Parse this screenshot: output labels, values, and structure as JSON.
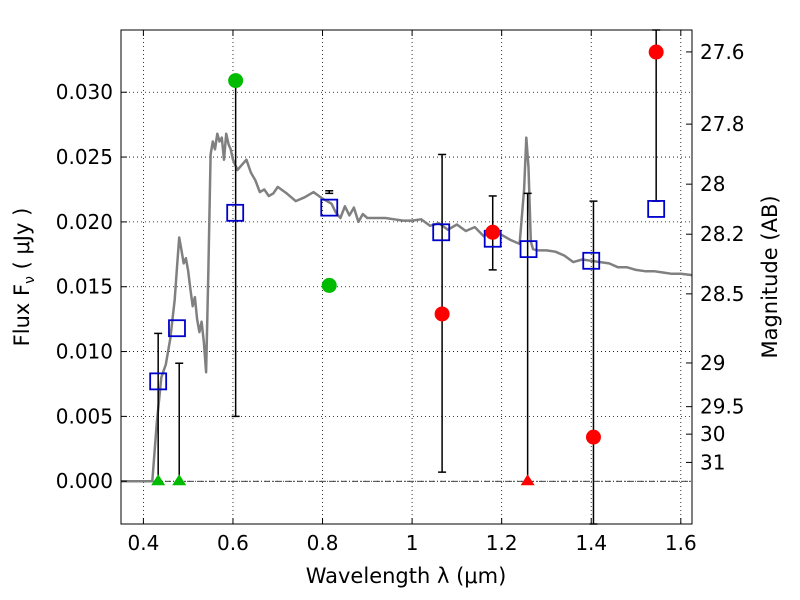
{
  "chart_data": {
    "type": "scatter",
    "title": "",
    "xlabel": "Wavelength  λ (μm)",
    "ylabel_left": "Flux  F",
    "ylabel_left_sub": "ν",
    "ylabel_left_unit": "  ( μJy )",
    "ylabel_right": "Magnitude (AB)",
    "xlim": [
      0.35,
      1.625
    ],
    "ylim": [
      -0.0033,
      0.0348
    ],
    "grid": true,
    "colors": {
      "spectrum": "#808080",
      "model": "#0000cc",
      "green": "#00bb00",
      "red": "#ff0000",
      "errorbar": "#000000",
      "zeroline": "#000000"
    },
    "x_ticks": [
      {
        "value": 0.4,
        "label": "0.4"
      },
      {
        "value": 0.6,
        "label": "0.6"
      },
      {
        "value": 0.8,
        "label": "0.8"
      },
      {
        "value": 1.0,
        "label": "1"
      },
      {
        "value": 1.2,
        "label": "1.2"
      },
      {
        "value": 1.4,
        "label": "1.4"
      },
      {
        "value": 1.6,
        "label": "1.6"
      }
    ],
    "y_ticks": [
      {
        "value": 0.0,
        "label": "0.000"
      },
      {
        "value": 0.005,
        "label": "0.005"
      },
      {
        "value": 0.01,
        "label": "0.010"
      },
      {
        "value": 0.015,
        "label": "0.015"
      },
      {
        "value": 0.02,
        "label": "0.020"
      },
      {
        "value": 0.025,
        "label": "0.025"
      },
      {
        "value": 0.03,
        "label": "0.030"
      }
    ],
    "right_ticks": [
      {
        "flux": 0.03311,
        "label": "27.6"
      },
      {
        "flux": 0.02754,
        "label": "27.8"
      },
      {
        "flux": 0.02291,
        "label": "28"
      },
      {
        "flux": 0.01905,
        "label": "28.2"
      },
      {
        "flux": 0.01445,
        "label": "28.5"
      },
      {
        "flux": 0.00912,
        "label": "29"
      },
      {
        "flux": 0.00575,
        "label": "29.5"
      },
      {
        "flux": 0.00363,
        "label": "30"
      },
      {
        "flux": 0.00145,
        "label": "31"
      }
    ],
    "spectrum": {
      "name": "model spectrum",
      "x": [
        0.35,
        0.42,
        0.43,
        0.44,
        0.45,
        0.46,
        0.47,
        0.475,
        0.48,
        0.485,
        0.49,
        0.495,
        0.5,
        0.505,
        0.51,
        0.515,
        0.52,
        0.525,
        0.53,
        0.535,
        0.54,
        0.545,
        0.55,
        0.555,
        0.56,
        0.565,
        0.57,
        0.575,
        0.58,
        0.585,
        0.59,
        0.595,
        0.6,
        0.61,
        0.62,
        0.63,
        0.64,
        0.65,
        0.66,
        0.67,
        0.68,
        0.69,
        0.7,
        0.72,
        0.74,
        0.76,
        0.78,
        0.8,
        0.82,
        0.83,
        0.84,
        0.85,
        0.86,
        0.87,
        0.88,
        0.89,
        0.9,
        0.92,
        0.94,
        0.96,
        0.98,
        1.0,
        1.02,
        1.04,
        1.06,
        1.08,
        1.1,
        1.12,
        1.14,
        1.16,
        1.18,
        1.2,
        1.22,
        1.24,
        1.25,
        1.255,
        1.26,
        1.265,
        1.27,
        1.28,
        1.3,
        1.32,
        1.34,
        1.36,
        1.38,
        1.4,
        1.42,
        1.44,
        1.46,
        1.48,
        1.5,
        1.52,
        1.54,
        1.56,
        1.58,
        1.6,
        1.625
      ],
      "y": [
        0.0,
        0.0,
        0.0045,
        0.008,
        0.009,
        0.011,
        0.014,
        0.0165,
        0.0188,
        0.0178,
        0.0168,
        0.0172,
        0.0162,
        0.0148,
        0.0135,
        0.0142,
        0.0125,
        0.0115,
        0.0123,
        0.0107,
        0.0084,
        0.016,
        0.0252,
        0.0262,
        0.0256,
        0.0268,
        0.0262,
        0.0265,
        0.0248,
        0.0268,
        0.026,
        0.0256,
        0.0248,
        0.024,
        0.0244,
        0.0248,
        0.0238,
        0.0232,
        0.0223,
        0.0225,
        0.022,
        0.0222,
        0.0227,
        0.0222,
        0.0216,
        0.0219,
        0.0223,
        0.0218,
        0.0214,
        0.0207,
        0.0203,
        0.0212,
        0.0205,
        0.0211,
        0.02,
        0.0206,
        0.0203,
        0.0203,
        0.0203,
        0.0202,
        0.0201,
        0.0201,
        0.0202,
        0.0197,
        0.0199,
        0.0194,
        0.0198,
        0.0193,
        0.0196,
        0.0189,
        0.0195,
        0.019,
        0.0186,
        0.0183,
        0.0225,
        0.0265,
        0.0242,
        0.0185,
        0.0179,
        0.0178,
        0.0178,
        0.0177,
        0.0174,
        0.0169,
        0.0171,
        0.017,
        0.0169,
        0.0168,
        0.0165,
        0.0165,
        0.0163,
        0.0162,
        0.0162,
        0.0161,
        0.016,
        0.016,
        0.0159
      ]
    },
    "model_points": {
      "name": "model photometry",
      "marker": "open-square",
      "x": [
        0.433,
        0.475,
        0.605,
        0.815,
        1.065,
        1.18,
        1.26,
        1.4,
        1.545
      ],
      "y": [
        0.0077,
        0.0118,
        0.0207,
        0.0211,
        0.0192,
        0.0187,
        0.0179,
        0.017,
        0.021
      ]
    },
    "observed_points": [
      {
        "x": 0.433,
        "y": 0.0,
        "err_low": 0.0,
        "err_high": 0.0114,
        "marker": "triangle",
        "color": "green"
      },
      {
        "x": 0.48,
        "y": 0.0,
        "err_low": 0.0,
        "err_high": 0.0091,
        "marker": "triangle",
        "color": "green"
      },
      {
        "x": 0.606,
        "y": 0.0309,
        "err_low": 0.0309,
        "err_high": 0.005,
        "marker": "circle",
        "color": "green"
      },
      {
        "x": 0.815,
        "y": 0.0151,
        "err_low": 0.0222,
        "err_high": 0.0224,
        "marker": "circle",
        "color": "green"
      },
      {
        "x": 1.067,
        "y": 0.0129,
        "err_low": 0.0007,
        "err_high": 0.0252,
        "marker": "circle",
        "color": "red"
      },
      {
        "x": 1.18,
        "y": 0.0192,
        "err_low": 0.0163,
        "err_high": 0.022,
        "marker": "circle",
        "color": "red"
      },
      {
        "x": 1.258,
        "y": 0.0,
        "err_low": 0.0,
        "err_high": 0.0222,
        "marker": "triangle",
        "color": "red"
      },
      {
        "x": 1.405,
        "y": 0.0034,
        "err_low": -0.0033,
        "err_high": 0.0216,
        "marker": "circle",
        "color": "red"
      },
      {
        "x": 1.545,
        "y": 0.0331,
        "err_low": 0.0216,
        "err_high": 0.0348,
        "marker": "circle",
        "color": "red"
      }
    ]
  }
}
